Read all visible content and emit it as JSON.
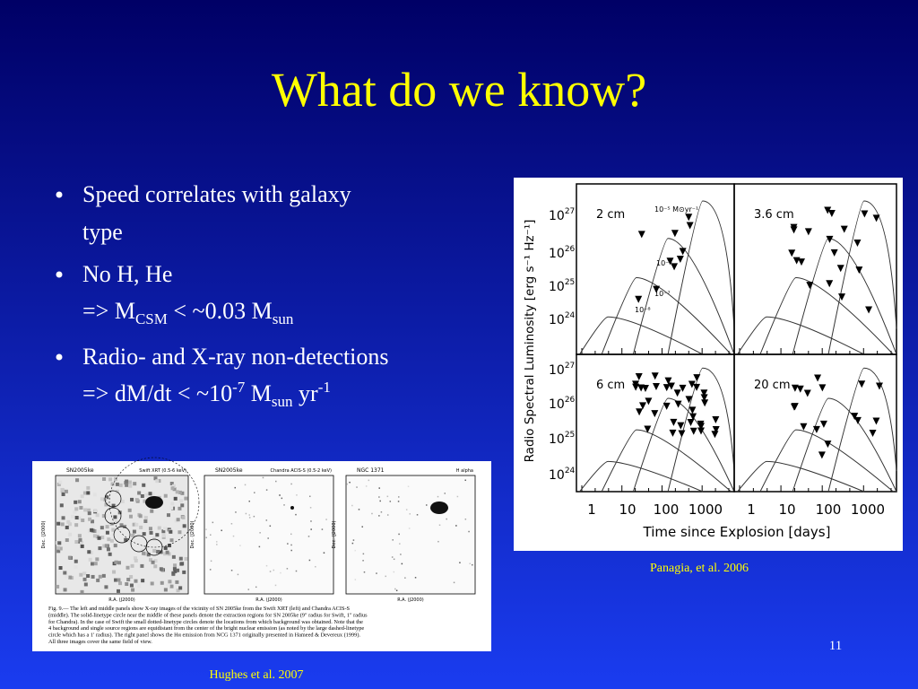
{
  "title": "What do we know?",
  "bullets": [
    [
      [
        {
          "text": "Speed correlates with galaxy"
        }
      ],
      [
        {
          "text": "type"
        }
      ]
    ],
    [
      [
        {
          "text": "No H, He"
        }
      ],
      [
        {
          "text": "=> M"
        },
        {
          "text": "CSM",
          "sub": true
        },
        {
          "text": " < ~0.03 M"
        },
        {
          "text": "sun",
          "sub": true
        }
      ]
    ],
    [
      [
        {
          "text": "Radio- and X-ray non-detections"
        }
      ],
      [
        {
          "text": "=> dM/dt < ~10"
        },
        {
          "text": "-7",
          "sup": true
        },
        {
          "text": " M"
        },
        {
          "text": "sun",
          "sub": true
        },
        {
          "text": " yr"
        },
        {
          "text": "-1",
          "sup": true
        }
      ]
    ]
  ],
  "radio_figure": {
    "y_label": "Radio Spectral Luminosity [erg s⁻¹ Hz⁻¹]",
    "x_label": "Time since Explosion [days]",
    "panels": [
      "2 cm",
      "3.6 cm",
      "6 cm",
      "20 cm"
    ],
    "x_ticks": [
      "1",
      "10",
      "100",
      "1000"
    ],
    "y_ticks": [
      {
        "base": "10",
        "sup": "27"
      },
      {
        "base": "10",
        "sup": "26"
      },
      {
        "base": "10",
        "sup": "25"
      },
      {
        "base": "10",
        "sup": "24"
      }
    ],
    "curve_labels": [
      "10⁻⁵ M⊙yr⁻¹",
      "10⁻⁶",
      "10⁻⁷",
      "10⁻⁸"
    ]
  },
  "radio_credit": "Panagia, et al.  2006",
  "xray_figure": {
    "panel_headers": [
      [
        "SN2005ke",
        "Swift XRT (0.5-6 keV)"
      ],
      [
        "SN2005ke",
        "Chandra ACIS-S (0.5-2 keV)"
      ],
      [
        "NGC 1371",
        "H alpha"
      ]
    ],
    "x_label": "R.A. (J2000)",
    "y_label": "Dec. (J2000)",
    "caption": [
      "Fig. 9.— The left and middle panels show X-ray images of the vicinity of SN 2005ke from the Swift XRT (left) and Chandra ACIS-S",
      "(middle). The solid-linetype circle near the middle of these panels denote the extraction regions for SN 2005ke (9″ radius for Swift, 1″ radius",
      "for Chandra). In the case of Swift the small dotted-linetype circles denote the locations from which background was obtained. Note that the",
      "4 background and single source regions are equidistant from the center of the bright nuclear emission (as noted by the large dashed-linetype",
      "circle which has a 1′ radius). The right panel shows the Hα emission from NCG 1371 originally presented in Hameed & Devereux (1999).",
      "All three images cover the same field of view."
    ]
  },
  "xray_credit": "Hughes et al.  2007",
  "slide_number": "11"
}
